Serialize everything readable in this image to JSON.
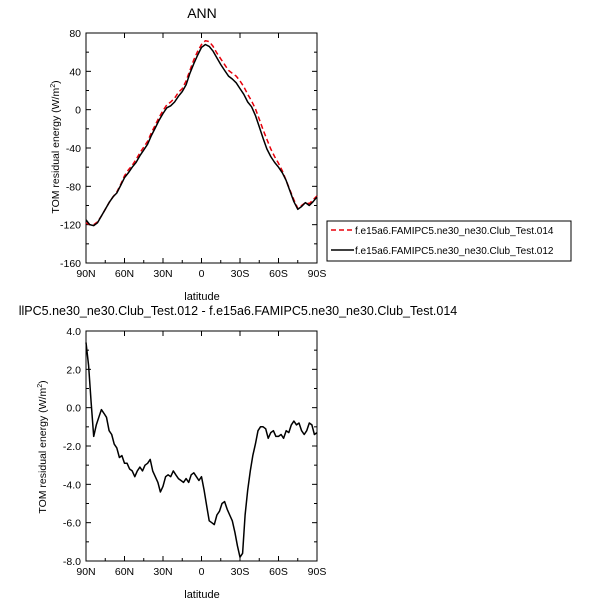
{
  "chart_data": [
    {
      "type": "line",
      "title": "ANN",
      "ylabel": "TOM residual energy (W/m",
      "ylabel_sup": "2",
      "ylabel_close": ")",
      "xlabel": "latitude",
      "x_ticks": [
        "90N",
        "60N",
        "30N",
        "0",
        "30S",
        "60S",
        "90S"
      ],
      "x_tick_values": [
        90,
        60,
        30,
        0,
        -30,
        -60,
        -90
      ],
      "xlim": [
        90,
        -90
      ],
      "y_ticks": [
        "80",
        "40",
        "0",
        "-40",
        "-80",
        "-120",
        "-160"
      ],
      "ylim": [
        -160,
        80
      ],
      "legend_position": "right",
      "series": [
        {
          "name": "f.e15a6.FAMIPC5.ne30_ne30.Club_Test.014",
          "color": "#e8000b",
          "style": "dashed",
          "x": [
            90,
            87,
            84,
            81,
            78,
            75,
            72,
            69,
            66,
            63,
            60,
            57,
            54,
            51,
            48,
            45,
            42,
            39,
            36,
            33,
            30,
            27,
            24,
            21,
            18,
            15,
            12,
            9,
            6,
            3,
            0,
            -3,
            -6,
            -9,
            -12,
            -15,
            -18,
            -21,
            -24,
            -27,
            -30,
            -33,
            -36,
            -39,
            -42,
            -45,
            -48,
            -51,
            -54,
            -57,
            -60,
            -63,
            -66,
            -69,
            -72,
            -75,
            -78,
            -81,
            -84,
            -87,
            -90
          ],
          "y": [
            -118,
            -120,
            -120,
            -117,
            -111,
            -104,
            -97,
            -91,
            -86,
            -78,
            -69,
            -63,
            -58,
            -52,
            -45,
            -39,
            -33,
            -24,
            -16,
            -8,
            -1,
            5,
            8,
            12,
            18,
            22,
            30,
            41,
            52,
            61,
            68,
            72,
            71,
            66,
            59,
            53,
            47,
            41,
            38,
            35,
            30,
            24,
            16,
            9,
            1,
            -10,
            -21,
            -31,
            -41,
            -49,
            -56,
            -64,
            -74,
            -84,
            -94,
            -103,
            -100,
            -97,
            -98,
            -94,
            -90
          ]
        },
        {
          "name": "f.e15a6.FAMIPC5.ne30_ne30.Club_Test.012",
          "color": "#000000",
          "style": "solid",
          "x": [
            90,
            87,
            84,
            81,
            78,
            75,
            72,
            69,
            66,
            63,
            60,
            57,
            54,
            51,
            48,
            45,
            42,
            39,
            36,
            33,
            30,
            27,
            24,
            21,
            18,
            15,
            12,
            9,
            6,
            3,
            0,
            -3,
            -6,
            -9,
            -12,
            -15,
            -18,
            -21,
            -24,
            -27,
            -30,
            -33,
            -36,
            -39,
            -42,
            -45,
            -48,
            -51,
            -54,
            -57,
            -60,
            -63,
            -66,
            -69,
            -72,
            -75,
            -78,
            -81,
            -84,
            -87,
            -90
          ],
          "y": [
            -115,
            -120,
            -121,
            -118,
            -111,
            -104,
            -97,
            -91,
            -87,
            -79,
            -71,
            -66,
            -60,
            -55,
            -48,
            -42,
            -36,
            -27,
            -19,
            -11,
            -4,
            2,
            4,
            8,
            14,
            19,
            26,
            38,
            48,
            57,
            65,
            68,
            66,
            61,
            54,
            47,
            41,
            35,
            32,
            28,
            22,
            16,
            8,
            3,
            -6,
            -18,
            -30,
            -41,
            -49,
            -55,
            -60,
            -66,
            -74,
            -85,
            -96,
            -104,
            -101,
            -97,
            -100,
            -96,
            -91
          ]
        }
      ]
    },
    {
      "type": "line",
      "title": "llPC5.ne30_ne30.Club_Test.012 - f.e15a6.FAMIPC5.ne30_ne30.Club_Test.014",
      "ylabel": "TOM residual energy (W/m",
      "ylabel_sup": "2",
      "ylabel_close": ")",
      "xlabel": "latitude",
      "x_ticks": [
        "90N",
        "60N",
        "30N",
        "0",
        "30S",
        "60S",
        "90S"
      ],
      "x_tick_values": [
        90,
        60,
        30,
        0,
        -30,
        -60,
        -90
      ],
      "xlim": [
        90,
        -90
      ],
      "y_ticks": [
        "4.0",
        "2.0",
        "0.0",
        "-2.0",
        "-4.0",
        "-6.0",
        "-8.0"
      ],
      "ylim": [
        -8,
        4
      ],
      "series": [
        {
          "name": "",
          "color": "#000000",
          "style": "solid",
          "x": [
            90,
            88,
            86,
            84,
            82,
            80,
            78,
            76,
            74,
            72,
            70,
            68,
            66,
            64,
            62,
            60,
            58,
            56,
            54,
            52,
            50,
            48,
            46,
            44,
            42,
            40,
            38,
            36,
            34,
            32,
            30,
            28,
            26,
            24,
            22,
            20,
            18,
            16,
            14,
            12,
            10,
            8,
            6,
            4,
            2,
            0,
            -2,
            -4,
            -6,
            -8,
            -10,
            -12,
            -14,
            -16,
            -18,
            -20,
            -22,
            -24,
            -26,
            -28,
            -30,
            -32,
            -34,
            -36,
            -38,
            -40,
            -42,
            -44,
            -46,
            -48,
            -50,
            -52,
            -54,
            -56,
            -58,
            -60,
            -62,
            -64,
            -66,
            -68,
            -70,
            -72,
            -74,
            -76,
            -78,
            -80,
            -82,
            -84,
            -86,
            -88,
            -90
          ],
          "y": [
            3.4,
            2.2,
            0.3,
            -1.5,
            -0.9,
            -0.5,
            -0.1,
            -0.3,
            -0.5,
            -1.2,
            -1.4,
            -1.9,
            -2.1,
            -2.6,
            -2.5,
            -2.9,
            -2.9,
            -3.2,
            -3.3,
            -3.6,
            -3.3,
            -3.1,
            -3.3,
            -3.0,
            -2.9,
            -2.7,
            -3.3,
            -3.6,
            -3.9,
            -4.4,
            -4.1,
            -3.6,
            -3.5,
            -3.6,
            -3.3,
            -3.5,
            -3.7,
            -3.8,
            -3.9,
            -3.7,
            -3.9,
            -3.5,
            -3.4,
            -3.6,
            -3.8,
            -3.6,
            -4.3,
            -5.1,
            -5.9,
            -6.0,
            -6.1,
            -5.6,
            -5.4,
            -5.0,
            -4.9,
            -5.3,
            -5.6,
            -5.9,
            -6.5,
            -7.2,
            -7.8,
            -7.6,
            -5.6,
            -4.3,
            -3.3,
            -2.5,
            -1.9,
            -1.2,
            -1.0,
            -1.0,
            -1.1,
            -1.6,
            -1.3,
            -1.2,
            -1.5,
            -1.5,
            -1.4,
            -1.6,
            -1.2,
            -1.3,
            -0.9,
            -0.7,
            -0.9,
            -0.8,
            -1.2,
            -1.4,
            -1.2,
            -0.8,
            -0.9,
            -1.4,
            -1.3
          ]
        }
      ]
    }
  ]
}
